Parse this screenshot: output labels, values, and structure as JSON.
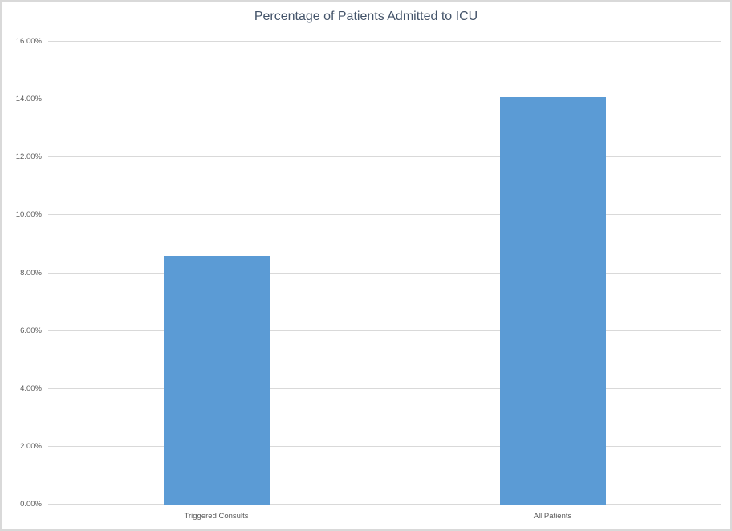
{
  "chart_data": {
    "type": "bar",
    "title": "Percentage of Patients Admitted to ICU",
    "categories": [
      "Triggered Consults",
      "All Patients"
    ],
    "values": [
      8.6,
      14.1
    ],
    "value_unit": "percent",
    "xlabel": "",
    "ylabel": "",
    "ylim": [
      0,
      16
    ],
    "ytick_step": 2,
    "ytick_labels": [
      "0.00%",
      "2.00%",
      "4.00%",
      "6.00%",
      "8.00%",
      "10.00%",
      "12.00%",
      "14.00%",
      "16.00%"
    ],
    "grid": true,
    "legend": false
  },
  "colors": {
    "bar": "#5B9BD5",
    "title_text": "#44546A",
    "axis_text": "#595959",
    "gridline": "#D9D9D9",
    "border": "#D9D9D9",
    "background": "#FFFFFF"
  }
}
